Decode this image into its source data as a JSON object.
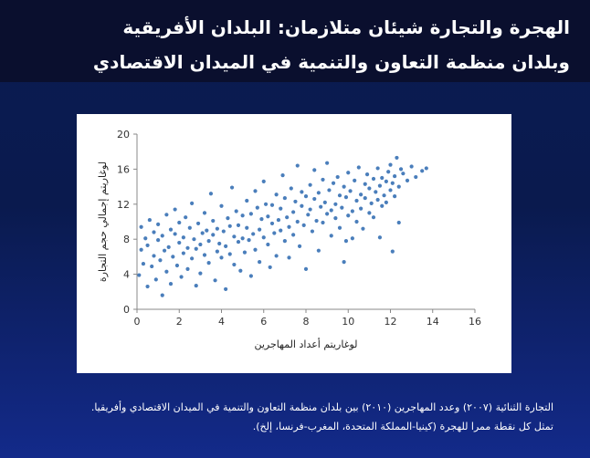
{
  "slide": {
    "title_line1": "الهجرة والتجارة شيئان متلازمان: البلدان الأفريقية",
    "title_line2": "وبلدان منظمة التعاون والتنمية في الميدان الاقتصادي",
    "caption_line1": "التجارة الثنائية (٢٠٠٧) وعدد المهاجرين (٢٠١٠) بين بلدان منظمة التعاون والتنمية في الميدان الاقتصادي وأفريقيا.",
    "caption_line2": "تمثل كل نقطة ممرا للهجرة (كينيا-المملكة المتحدة، المغرب-فرنسا، إلخ).",
    "colors": {
      "background": "#0b1c52",
      "title_band": "#0a0f2e",
      "point": "#4a7ebb"
    }
  },
  "chart_data": {
    "type": "scatter",
    "xlabel": "لوغاريتم أعداد المهاجرين",
    "ylabel": "لوغاريتم إجمالي حجم التجارة",
    "xlim": [
      0,
      16
    ],
    "ylim": [
      0,
      20
    ],
    "xticks": [
      "0",
      "2",
      "4",
      "6",
      "8",
      "10",
      "12",
      "14",
      "16"
    ],
    "yticks": [
      "0",
      "4",
      "8",
      "12",
      "16",
      "20"
    ],
    "grid": false,
    "points": [
      {
        "x": 0.1,
        "y": 3.9
      },
      {
        "x": 0.2,
        "y": 6.8
      },
      {
        "x": 0.2,
        "y": 9.4
      },
      {
        "x": 0.3,
        "y": 5.2
      },
      {
        "x": 0.4,
        "y": 8.1
      },
      {
        "x": 0.5,
        "y": 2.6
      },
      {
        "x": 0.5,
        "y": 7.3
      },
      {
        "x": 0.6,
        "y": 10.2
      },
      {
        "x": 0.7,
        "y": 4.9
      },
      {
        "x": 0.8,
        "y": 6.1
      },
      {
        "x": 0.8,
        "y": 8.8
      },
      {
        "x": 0.9,
        "y": 3.4
      },
      {
        "x": 1.0,
        "y": 7.9
      },
      {
        "x": 1.0,
        "y": 9.7
      },
      {
        "x": 1.1,
        "y": 5.6
      },
      {
        "x": 1.2,
        "y": 1.6
      },
      {
        "x": 1.2,
        "y": 8.4
      },
      {
        "x": 1.3,
        "y": 6.7
      },
      {
        "x": 1.4,
        "y": 10.8
      },
      {
        "x": 1.4,
        "y": 4.3
      },
      {
        "x": 1.5,
        "y": 7.1
      },
      {
        "x": 1.6,
        "y": 9.1
      },
      {
        "x": 1.6,
        "y": 2.9
      },
      {
        "x": 1.7,
        "y": 6.0
      },
      {
        "x": 1.8,
        "y": 8.6
      },
      {
        "x": 1.8,
        "y": 11.4
      },
      {
        "x": 1.9,
        "y": 5.0
      },
      {
        "x": 2.0,
        "y": 7.6
      },
      {
        "x": 2.0,
        "y": 9.9
      },
      {
        "x": 2.1,
        "y": 3.7
      },
      {
        "x": 2.2,
        "y": 6.4
      },
      {
        "x": 2.2,
        "y": 8.2
      },
      {
        "x": 2.3,
        "y": 10.5
      },
      {
        "x": 2.4,
        "y": 4.6
      },
      {
        "x": 2.4,
        "y": 7.0
      },
      {
        "x": 2.5,
        "y": 9.3
      },
      {
        "x": 2.6,
        "y": 12.1
      },
      {
        "x": 2.6,
        "y": 5.8
      },
      {
        "x": 2.7,
        "y": 8.0
      },
      {
        "x": 2.8,
        "y": 2.7
      },
      {
        "x": 2.8,
        "y": 6.9
      },
      {
        "x": 2.9,
        "y": 9.8
      },
      {
        "x": 3.0,
        "y": 7.4
      },
      {
        "x": 3.0,
        "y": 4.1
      },
      {
        "x": 3.1,
        "y": 8.7
      },
      {
        "x": 3.2,
        "y": 11.0
      },
      {
        "x": 3.2,
        "y": 6.2
      },
      {
        "x": 3.3,
        "y": 9.0
      },
      {
        "x": 3.4,
        "y": 5.3
      },
      {
        "x": 3.4,
        "y": 7.8
      },
      {
        "x": 3.5,
        "y": 13.2
      },
      {
        "x": 3.6,
        "y": 8.5
      },
      {
        "x": 3.6,
        "y": 10.1
      },
      {
        "x": 3.7,
        "y": 3.3
      },
      {
        "x": 3.8,
        "y": 6.6
      },
      {
        "x": 3.8,
        "y": 9.2
      },
      {
        "x": 3.9,
        "y": 7.5
      },
      {
        "x": 4.0,
        "y": 11.8
      },
      {
        "x": 4.0,
        "y": 5.9
      },
      {
        "x": 4.1,
        "y": 8.9
      },
      {
        "x": 4.2,
        "y": 2.3
      },
      {
        "x": 4.2,
        "y": 7.2
      },
      {
        "x": 4.3,
        "y": 10.4
      },
      {
        "x": 4.4,
        "y": 6.3
      },
      {
        "x": 4.4,
        "y": 9.5
      },
      {
        "x": 4.5,
        "y": 13.9
      },
      {
        "x": 4.6,
        "y": 8.3
      },
      {
        "x": 4.6,
        "y": 5.1
      },
      {
        "x": 4.7,
        "y": 11.2
      },
      {
        "x": 4.8,
        "y": 7.7
      },
      {
        "x": 4.8,
        "y": 9.6
      },
      {
        "x": 4.9,
        "y": 4.4
      },
      {
        "x": 5.0,
        "y": 10.7
      },
      {
        "x": 5.0,
        "y": 8.1
      },
      {
        "x": 5.1,
        "y": 6.5
      },
      {
        "x": 5.2,
        "y": 12.4
      },
      {
        "x": 5.2,
        "y": 9.3
      },
      {
        "x": 5.3,
        "y": 7.9
      },
      {
        "x": 5.4,
        "y": 3.8
      },
      {
        "x": 5.4,
        "y": 10.9
      },
      {
        "x": 5.5,
        "y": 8.6
      },
      {
        "x": 5.6,
        "y": 13.5
      },
      {
        "x": 5.6,
        "y": 6.8
      },
      {
        "x": 5.7,
        "y": 11.6
      },
      {
        "x": 5.8,
        "y": 9.1
      },
      {
        "x": 5.8,
        "y": 5.4
      },
      {
        "x": 5.9,
        "y": 10.3
      },
      {
        "x": 6.0,
        "y": 14.6
      },
      {
        "x": 6.0,
        "y": 8.2
      },
      {
        "x": 6.1,
        "y": 12.0
      },
      {
        "x": 6.2,
        "y": 7.4
      },
      {
        "x": 6.2,
        "y": 10.6
      },
      {
        "x": 6.3,
        "y": 4.8
      },
      {
        "x": 6.4,
        "y": 9.8
      },
      {
        "x": 6.4,
        "y": 11.9
      },
      {
        "x": 6.5,
        "y": 8.7
      },
      {
        "x": 6.6,
        "y": 13.1
      },
      {
        "x": 6.6,
        "y": 6.1
      },
      {
        "x": 6.7,
        "y": 10.2
      },
      {
        "x": 6.8,
        "y": 11.5
      },
      {
        "x": 6.8,
        "y": 9.0
      },
      {
        "x": 6.9,
        "y": 15.3
      },
      {
        "x": 7.0,
        "y": 7.8
      },
      {
        "x": 7.0,
        "y": 12.7
      },
      {
        "x": 7.1,
        "y": 10.5
      },
      {
        "x": 7.2,
        "y": 5.9
      },
      {
        "x": 7.2,
        "y": 9.4
      },
      {
        "x": 7.3,
        "y": 13.8
      },
      {
        "x": 7.4,
        "y": 11.1
      },
      {
        "x": 7.4,
        "y": 8.5
      },
      {
        "x": 7.5,
        "y": 12.3
      },
      {
        "x": 7.6,
        "y": 16.4
      },
      {
        "x": 7.6,
        "y": 10.0
      },
      {
        "x": 7.7,
        "y": 7.2
      },
      {
        "x": 7.8,
        "y": 11.8
      },
      {
        "x": 7.8,
        "y": 13.4
      },
      {
        "x": 7.9,
        "y": 9.6
      },
      {
        "x": 8.0,
        "y": 12.9
      },
      {
        "x": 8.0,
        "y": 4.6
      },
      {
        "x": 8.1,
        "y": 10.8
      },
      {
        "x": 8.2,
        "y": 14.2
      },
      {
        "x": 8.2,
        "y": 11.4
      },
      {
        "x": 8.3,
        "y": 8.9
      },
      {
        "x": 8.4,
        "y": 12.6
      },
      {
        "x": 8.4,
        "y": 15.9
      },
      {
        "x": 8.5,
        "y": 10.1
      },
      {
        "x": 8.6,
        "y": 13.3
      },
      {
        "x": 8.6,
        "y": 6.7
      },
      {
        "x": 8.7,
        "y": 11.7
      },
      {
        "x": 8.8,
        "y": 14.8
      },
      {
        "x": 8.8,
        "y": 9.9
      },
      {
        "x": 8.9,
        "y": 12.2
      },
      {
        "x": 9.0,
        "y": 16.7
      },
      {
        "x": 9.0,
        "y": 10.9
      },
      {
        "x": 9.1,
        "y": 13.6
      },
      {
        "x": 9.2,
        "y": 11.3
      },
      {
        "x": 9.2,
        "y": 8.4
      },
      {
        "x": 9.3,
        "y": 14.4
      },
      {
        "x": 9.4,
        "y": 12.0
      },
      {
        "x": 9.4,
        "y": 10.4
      },
      {
        "x": 9.5,
        "y": 15.1
      },
      {
        "x": 9.6,
        "y": 13.0
      },
      {
        "x": 9.6,
        "y": 9.3
      },
      {
        "x": 9.7,
        "y": 11.6
      },
      {
        "x": 9.8,
        "y": 14.0
      },
      {
        "x": 9.8,
        "y": 5.4
      },
      {
        "x": 9.9,
        "y": 12.8
      },
      {
        "x": 10.0,
        "y": 10.7
      },
      {
        "x": 10.0,
        "y": 15.6
      },
      {
        "x": 10.1,
        "y": 13.5
      },
      {
        "x": 10.2,
        "y": 11.2
      },
      {
        "x": 10.2,
        "y": 8.1
      },
      {
        "x": 10.3,
        "y": 14.7
      },
      {
        "x": 10.4,
        "y": 12.4
      },
      {
        "x": 10.4,
        "y": 10.0
      },
      {
        "x": 10.5,
        "y": 16.2
      },
      {
        "x": 10.6,
        "y": 13.1
      },
      {
        "x": 10.6,
        "y": 11.5
      },
      {
        "x": 10.7,
        "y": 9.2
      },
      {
        "x": 10.8,
        "y": 14.3
      },
      {
        "x": 10.8,
        "y": 12.7
      },
      {
        "x": 10.9,
        "y": 15.4
      },
      {
        "x": 11.0,
        "y": 11.0
      },
      {
        "x": 11.0,
        "y": 13.8
      },
      {
        "x": 11.1,
        "y": 12.1
      },
      {
        "x": 11.2,
        "y": 14.9
      },
      {
        "x": 11.2,
        "y": 10.5
      },
      {
        "x": 11.3,
        "y": 13.4
      },
      {
        "x": 11.4,
        "y": 16.1
      },
      {
        "x": 11.4,
        "y": 12.5
      },
      {
        "x": 11.5,
        "y": 14.1
      },
      {
        "x": 11.6,
        "y": 11.8
      },
      {
        "x": 11.6,
        "y": 15.0
      },
      {
        "x": 11.7,
        "y": 13.0
      },
      {
        "x": 11.8,
        "y": 14.6
      },
      {
        "x": 11.8,
        "y": 12.2
      },
      {
        "x": 11.9,
        "y": 15.7
      },
      {
        "x": 12.0,
        "y": 13.6
      },
      {
        "x": 12.0,
        "y": 16.5
      },
      {
        "x": 12.1,
        "y": 14.4
      },
      {
        "x": 12.2,
        "y": 12.9
      },
      {
        "x": 12.2,
        "y": 15.2
      },
      {
        "x": 12.3,
        "y": 17.3
      },
      {
        "x": 12.4,
        "y": 14.0
      },
      {
        "x": 12.5,
        "y": 16.0
      },
      {
        "x": 12.6,
        "y": 15.5
      },
      {
        "x": 12.8,
        "y": 14.7
      },
      {
        "x": 13.0,
        "y": 16.3
      },
      {
        "x": 13.2,
        "y": 15.1
      },
      {
        "x": 13.5,
        "y": 15.8
      },
      {
        "x": 13.7,
        "y": 16.1
      },
      {
        "x": 12.1,
        "y": 6.6
      },
      {
        "x": 11.5,
        "y": 8.2
      },
      {
        "x": 12.4,
        "y": 9.9
      },
      {
        "x": 9.9,
        "y": 7.8
      }
    ]
  }
}
